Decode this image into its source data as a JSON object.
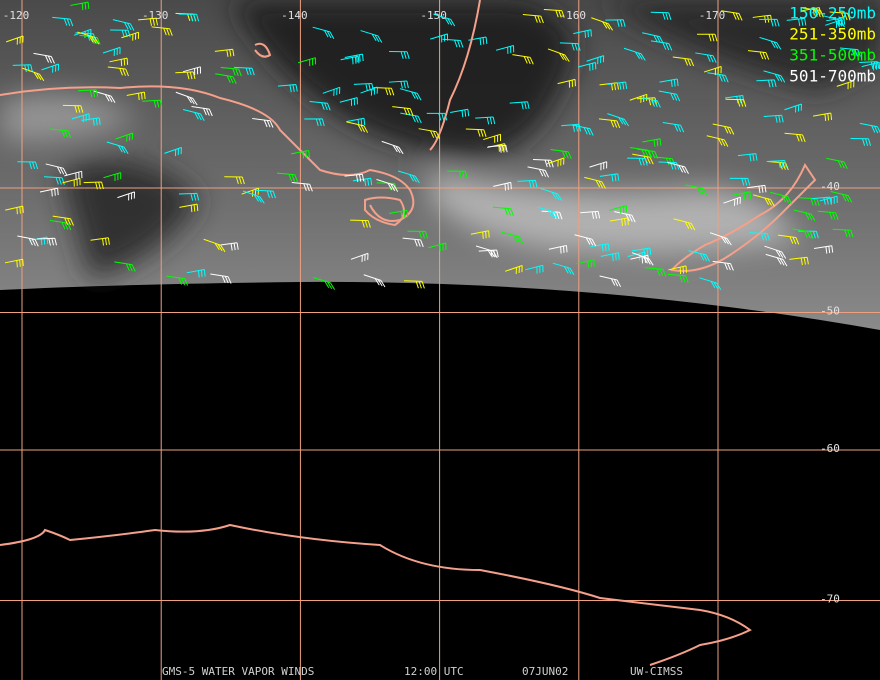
{
  "map": {
    "longitudes": [
      -120,
      -130,
      -140,
      -150,
      -160,
      -170
    ],
    "latitudes": [
      -40,
      -50,
      -60,
      -70
    ],
    "legend": [
      {
        "label": "150-250mb",
        "color": "#00ffff"
      },
      {
        "label": "251-350mb",
        "color": "#ffff00"
      },
      {
        "label": "351-500mb",
        "color": "#00ff00"
      },
      {
        "label": "501-700mb",
        "color": "#ffffff"
      }
    ],
    "footer": [
      "GMS-5 WATER VAPOR WINDS",
      "12:00 UTC",
      "07JUN02",
      "UW-CIMSS"
    ]
  }
}
